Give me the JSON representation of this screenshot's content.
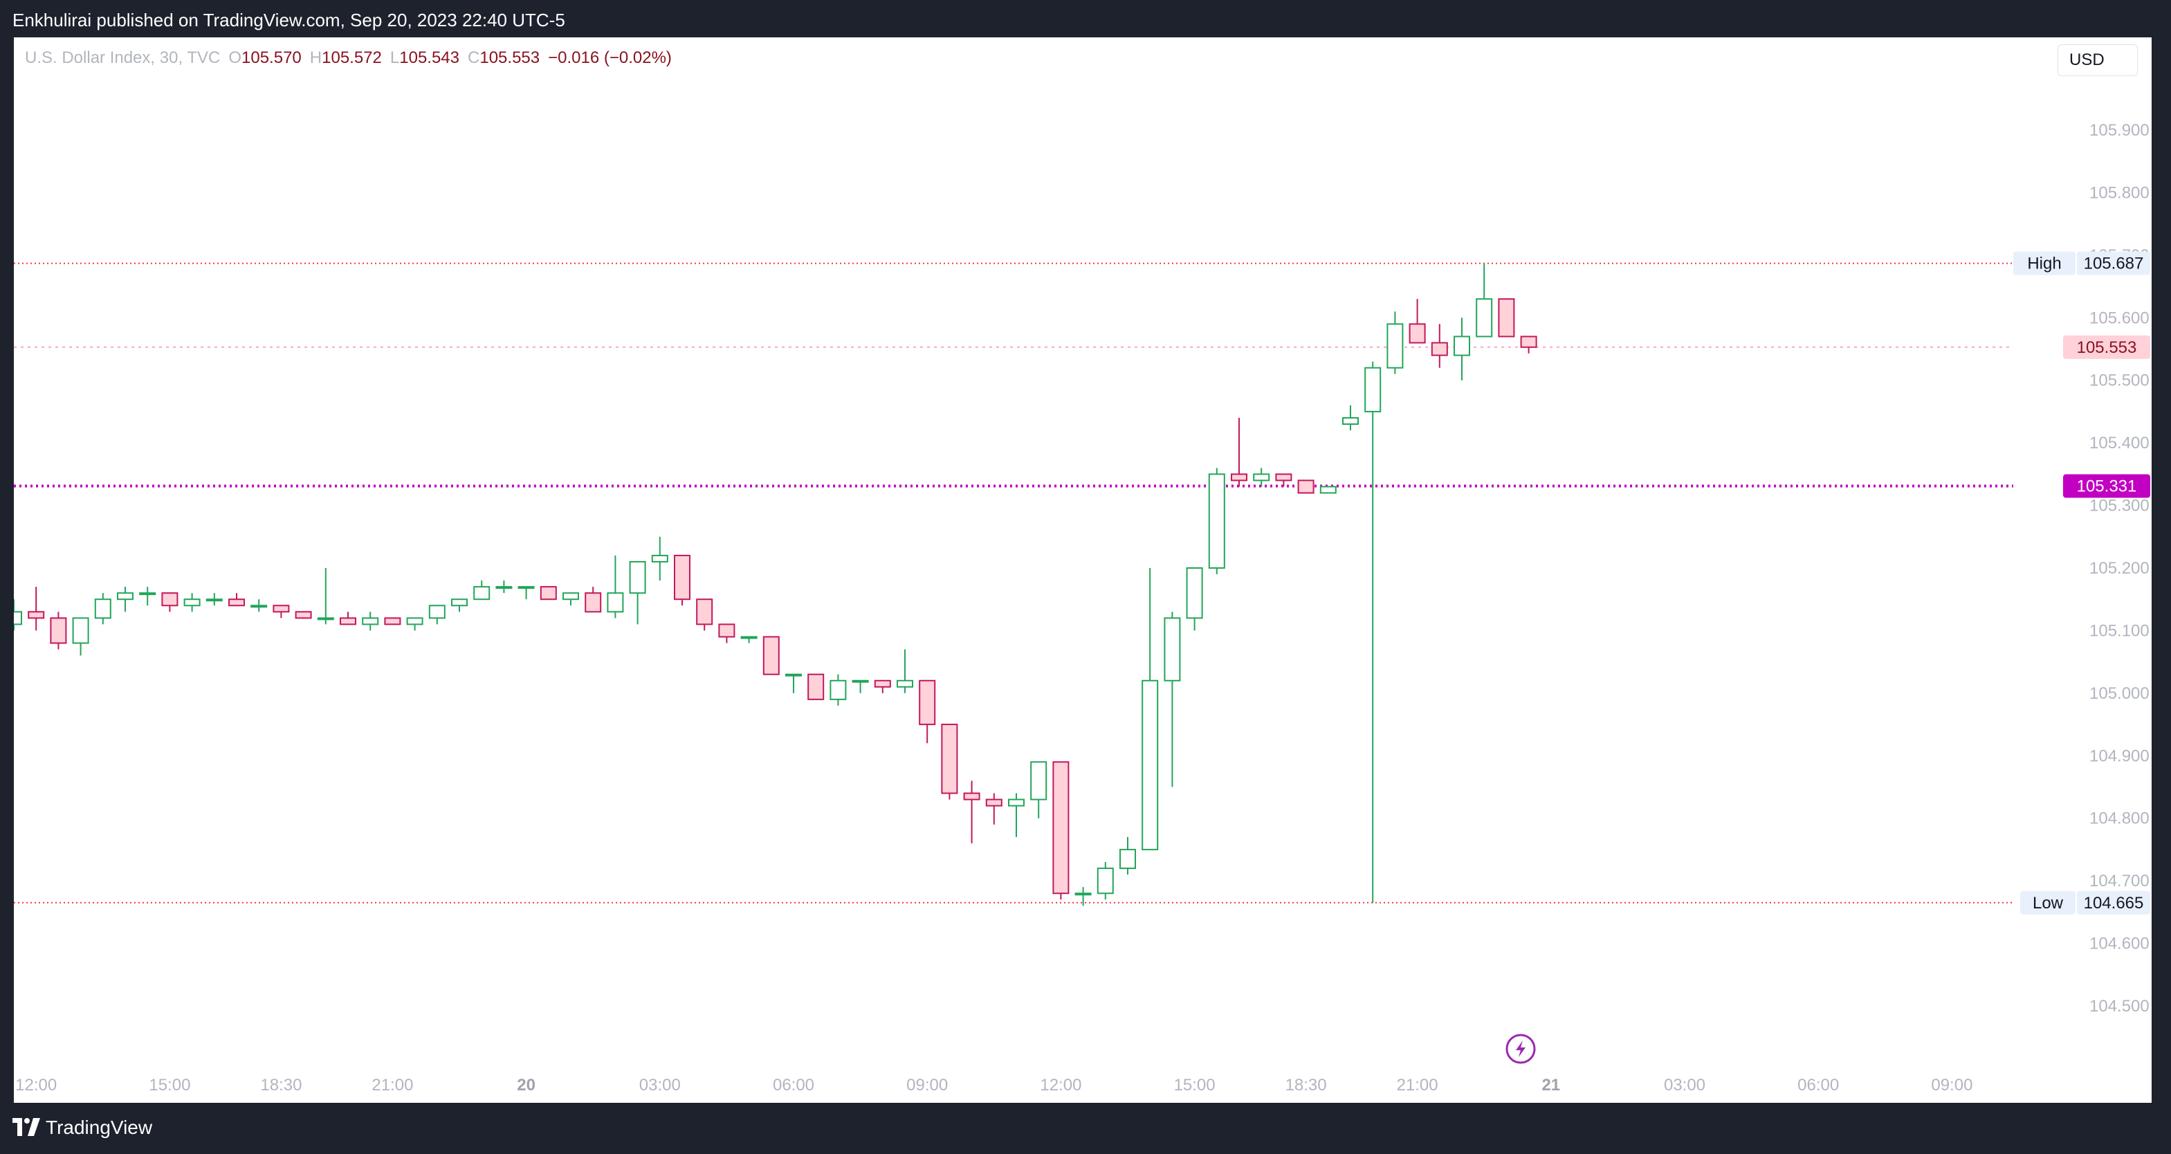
{
  "header": {
    "published_text": "Enkhulirai published on TradingView.com, Sep 20, 2023 22:40 UTC-5"
  },
  "legend": {
    "symbol": "U.S. Dollar Index, 30, TVC",
    "o_label": "O",
    "o_value": "105.570",
    "h_label": "H",
    "h_value": "105.572",
    "l_label": "L",
    "l_value": "105.543",
    "c_label": "C",
    "c_value": "105.553",
    "change": "−0.016 (−0.02%)"
  },
  "currency": "USD",
  "markers": {
    "high_label": "High",
    "high_value": "105.687",
    "low_label": "Low",
    "low_value": "104.665",
    "last_value": "105.553",
    "alert_value": "105.331"
  },
  "colors": {
    "up": "#089981",
    "up_wick": "#22a55a",
    "down": "#c2185b",
    "down_fill": "#ffd1d9",
    "up_fill": "#ffffff",
    "alert": "#c200c2",
    "high_low_line": "#f23645",
    "axis_text": "#b2b5be",
    "brand_icon": "flash-icon"
  },
  "footer": {
    "brand": "TradingView"
  },
  "chart_data": {
    "type": "candlestick",
    "title": "U.S. Dollar Index, 30, TVC",
    "y_ticks": [
      "105.900",
      "105.800",
      "105.700",
      "105.600",
      "105.500",
      "105.400",
      "105.300",
      "105.200",
      "105.100",
      "105.000",
      "104.900",
      "104.800",
      "104.700",
      "104.600",
      "104.500"
    ],
    "y_tick_values": [
      105.9,
      105.8,
      105.7,
      105.6,
      105.5,
      105.4,
      105.3,
      105.2,
      105.1,
      105.0,
      104.9,
      104.8,
      104.7,
      104.6,
      104.5
    ],
    "x_ticks": [
      "12:00",
      "15:00",
      "18:30",
      "21:00",
      "20",
      "03:00",
      "06:00",
      "09:00",
      "12:00",
      "15:00",
      "18:30",
      "21:00",
      "21",
      "03:00",
      "06:00",
      "09:00"
    ],
    "x_tick_bold": [
      false,
      false,
      false,
      false,
      true,
      false,
      false,
      false,
      false,
      false,
      false,
      false,
      true,
      false,
      false,
      false
    ],
    "x_tick_index": [
      1,
      7,
      12,
      17,
      23,
      29,
      35,
      41,
      47,
      53,
      58,
      63,
      69,
      75,
      81,
      87
    ],
    "ylim": [
      104.42,
      106.0
    ],
    "high": 105.687,
    "low": 104.665,
    "alert_level": 105.331,
    "last_close": 105.553,
    "candles": [
      [
        105.11,
        105.15,
        105.1,
        105.13
      ],
      [
        105.13,
        105.17,
        105.1,
        105.12
      ],
      [
        105.12,
        105.13,
        105.07,
        105.08
      ],
      [
        105.08,
        105.12,
        105.06,
        105.12
      ],
      [
        105.12,
        105.16,
        105.11,
        105.15
      ],
      [
        105.15,
        105.17,
        105.13,
        105.16
      ],
      [
        105.16,
        105.17,
        105.14,
        105.16
      ],
      [
        105.16,
        105.16,
        105.13,
        105.14
      ],
      [
        105.14,
        105.16,
        105.13,
        105.15
      ],
      [
        105.15,
        105.16,
        105.14,
        105.15
      ],
      [
        105.15,
        105.16,
        105.14,
        105.14
      ],
      [
        105.14,
        105.15,
        105.13,
        105.14
      ],
      [
        105.14,
        105.14,
        105.12,
        105.13
      ],
      [
        105.13,
        105.13,
        105.12,
        105.12
      ],
      [
        105.12,
        105.2,
        105.11,
        105.12
      ],
      [
        105.12,
        105.13,
        105.11,
        105.11
      ],
      [
        105.11,
        105.13,
        105.1,
        105.12
      ],
      [
        105.12,
        105.12,
        105.11,
        105.11
      ],
      [
        105.11,
        105.12,
        105.1,
        105.12
      ],
      [
        105.12,
        105.14,
        105.11,
        105.14
      ],
      [
        105.14,
        105.15,
        105.13,
        105.15
      ],
      [
        105.15,
        105.18,
        105.15,
        105.17
      ],
      [
        105.17,
        105.18,
        105.16,
        105.17
      ],
      [
        105.17,
        105.17,
        105.15,
        105.17
      ],
      [
        105.17,
        105.17,
        105.15,
        105.15
      ],
      [
        105.15,
        105.16,
        105.14,
        105.16
      ],
      [
        105.16,
        105.17,
        105.14,
        105.13
      ],
      [
        105.13,
        105.22,
        105.12,
        105.16
      ],
      [
        105.16,
        105.21,
        105.11,
        105.21
      ],
      [
        105.21,
        105.25,
        105.18,
        105.22
      ],
      [
        105.22,
        105.22,
        105.14,
        105.15
      ],
      [
        105.15,
        105.15,
        105.1,
        105.11
      ],
      [
        105.11,
        105.11,
        105.08,
        105.09
      ],
      [
        105.09,
        105.09,
        105.08,
        105.09
      ],
      [
        105.09,
        105.09,
        105.03,
        105.03
      ],
      [
        105.03,
        105.03,
        105.0,
        105.03
      ],
      [
        105.03,
        105.03,
        104.99,
        104.99
      ],
      [
        104.99,
        105.03,
        104.98,
        105.02
      ],
      [
        105.02,
        105.02,
        105.0,
        105.02
      ],
      [
        105.02,
        105.02,
        105.0,
        105.01
      ],
      [
        105.01,
        105.07,
        105.0,
        105.02
      ],
      [
        105.02,
        105.02,
        104.92,
        104.95
      ],
      [
        104.95,
        104.95,
        104.83,
        104.84
      ],
      [
        104.84,
        104.86,
        104.76,
        104.83
      ],
      [
        104.83,
        104.84,
        104.79,
        104.82
      ],
      [
        104.82,
        104.84,
        104.77,
        104.83
      ],
      [
        104.83,
        104.89,
        104.8,
        104.89
      ],
      [
        104.89,
        104.89,
        104.67,
        104.68
      ],
      [
        104.68,
        104.69,
        104.66,
        104.68
      ],
      [
        104.68,
        104.73,
        104.67,
        104.72
      ],
      [
        104.72,
        104.77,
        104.71,
        104.75
      ],
      [
        104.75,
        105.2,
        104.75,
        105.02
      ],
      [
        105.02,
        105.13,
        104.85,
        105.12
      ],
      [
        105.12,
        105.2,
        105.1,
        105.2
      ],
      [
        105.2,
        105.36,
        105.19,
        105.35
      ],
      [
        105.35,
        105.44,
        105.33,
        105.34
      ],
      [
        105.34,
        105.36,
        105.33,
        105.35
      ],
      [
        105.35,
        105.35,
        105.33,
        105.34
      ],
      [
        105.34,
        105.34,
        105.32,
        105.32
      ],
      [
        105.32,
        105.33,
        105.32,
        105.33
      ],
      [
        105.43,
        105.46,
        105.42,
        105.44
      ],
      [
        105.45,
        105.53,
        104.665,
        105.52
      ],
      [
        105.52,
        105.61,
        105.51,
        105.59
      ],
      [
        105.59,
        105.63,
        105.56,
        105.56
      ],
      [
        105.56,
        105.59,
        105.52,
        105.54
      ],
      [
        105.54,
        105.6,
        105.5,
        105.57
      ],
      [
        105.57,
        105.687,
        105.57,
        105.63
      ],
      [
        105.63,
        105.63,
        105.57,
        105.57
      ],
      [
        105.57,
        105.57,
        105.543,
        105.553
      ]
    ]
  }
}
